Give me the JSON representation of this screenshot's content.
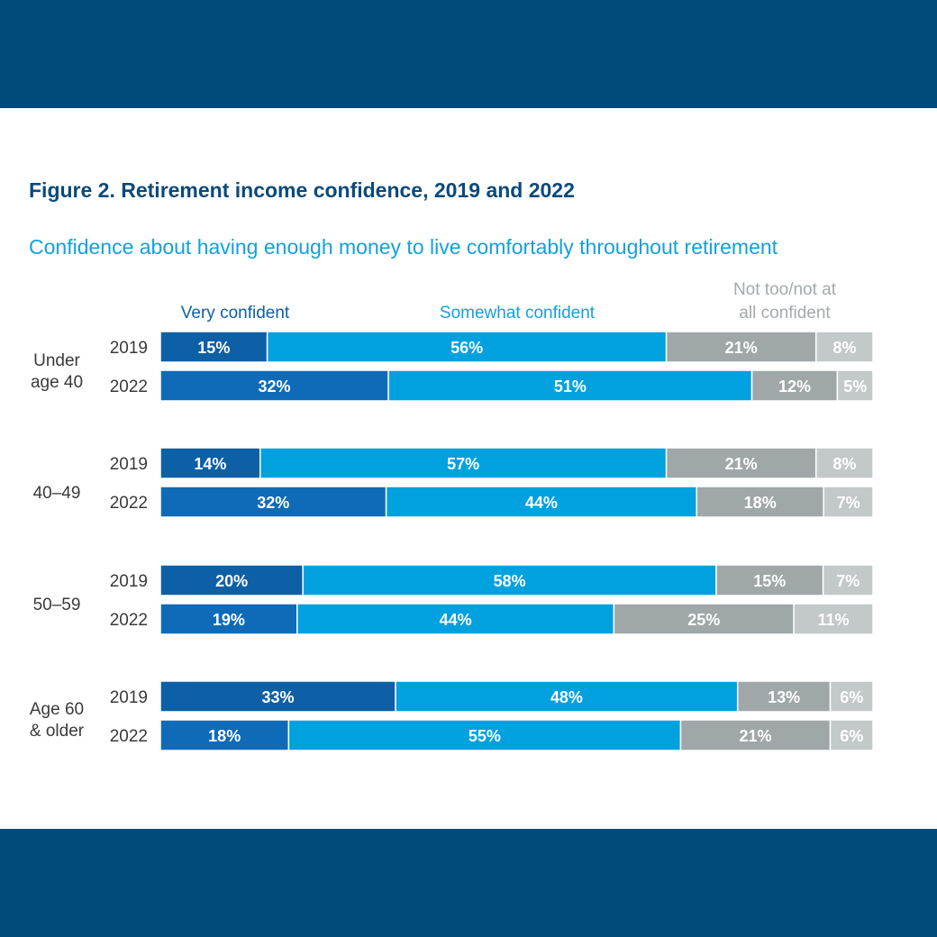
{
  "header": {
    "title": "Figure 2. Retirement income confidence, 2019 and 2022",
    "subtitle": "Confidence about having enough money to live comfortably throughout retirement"
  },
  "colors": {
    "band": "#004b79",
    "title": "#0b4a7a",
    "subtitle": "#12a1dc",
    "very_confident_2019": "#0d5fa6",
    "very_confident_2022": "#0f6bb8",
    "somewhat_confident": "#00a1de",
    "not_confident": "#9fa7a8",
    "not_at_all_confident": "#c3c8c9",
    "legend_very": "#0d5fa6",
    "legend_somewhat": "#12a1dc",
    "legend_not": "#a5a9ab",
    "axis_text": "#3a3a3a"
  },
  "chart_data": {
    "type": "bar",
    "orientation": "horizontal",
    "stacked": true,
    "title": "Figure 2. Retirement income confidence, 2019 and 2022",
    "subtitle": "Confidence about having enough money to live comfortably throughout retirement",
    "legend": [
      {
        "key": "very",
        "label": "Very confident"
      },
      {
        "key": "somewhat",
        "label": "Somewhat confident"
      },
      {
        "key": "not",
        "label_lines": [
          "Not too/not at",
          "all confident"
        ]
      }
    ],
    "series_keys": [
      "very",
      "somewhat",
      "not_too",
      "not_at_all"
    ],
    "xlim": [
      0,
      100
    ],
    "groups": [
      {
        "label_lines": [
          "Under",
          "age 40"
        ],
        "bars": [
          {
            "year": "2019",
            "values": [
              15,
              56,
              21,
              8
            ]
          },
          {
            "year": "2022",
            "values": [
              32,
              51,
              12,
              5
            ]
          }
        ]
      },
      {
        "label_lines": [
          "40–49"
        ],
        "bars": [
          {
            "year": "2019",
            "values": [
              14,
              57,
              21,
              8
            ]
          },
          {
            "year": "2022",
            "values": [
              32,
              44,
              18,
              7
            ]
          }
        ]
      },
      {
        "label_lines": [
          "50–59"
        ],
        "bars": [
          {
            "year": "2019",
            "values": [
              20,
              58,
              15,
              7
            ]
          },
          {
            "year": "2022",
            "values": [
              19,
              44,
              25,
              11
            ]
          }
        ]
      },
      {
        "label_lines": [
          "Age 60",
          "& older"
        ],
        "bars": [
          {
            "year": "2019",
            "values": [
              33,
              48,
              13,
              6
            ]
          },
          {
            "year": "2022",
            "values": [
              18,
              55,
              21,
              6
            ]
          }
        ]
      }
    ]
  }
}
